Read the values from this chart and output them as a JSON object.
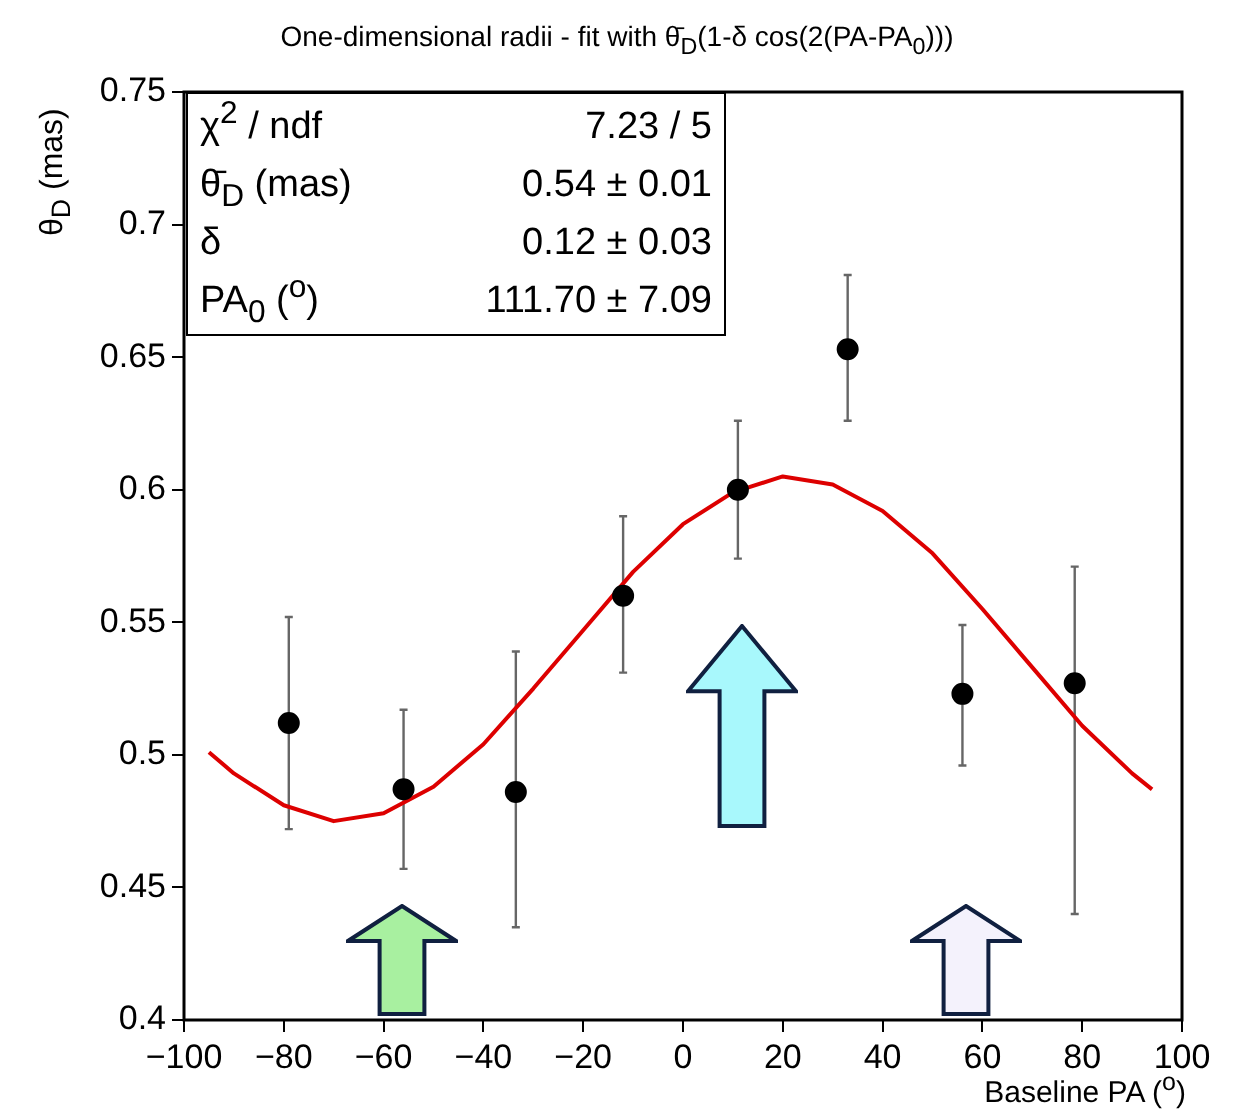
{
  "chart_data": {
    "type": "scatter",
    "title": "One-dimensional radii - fit with θ̄$_{D}$(1-δ cos(2(PA-PA$_{0}$)))",
    "xlabel": "Baseline PA ($^{o}$)",
    "ylabel": "θ$_{D}$ (mas)",
    "xlim": [
      -100,
      100
    ],
    "xticks": [
      {
        "value": -100,
        "label": "−100"
      },
      {
        "value": -80,
        "label": "−80"
      },
      {
        "value": -60,
        "label": "−60"
      },
      {
        "value": -40,
        "label": "−40"
      },
      {
        "value": -20,
        "label": "−20"
      },
      0,
      20,
      40,
      60,
      80,
      100
    ],
    "ylim": [
      0.4,
      0.75
    ],
    "yticks": [
      0.4,
      0.45,
      0.5,
      0.55,
      0.6,
      0.65,
      0.7,
      0.75
    ],
    "annotations": [
      "χ$^{2}$ / ndf",
      "7.23 / 5",
      "θ̄$_{D}$ (mas)",
      "0.54 ± 0.01",
      "δ",
      "0.12 ± 0.03",
      "PA$_{0}$ ($^{o}$)",
      "111.70 ± 7.09"
    ],
    "series": [
      {
        "color": "#000000",
        "marker": "circle",
        "x": [
          -79,
          -56,
          -33.5,
          -12,
          11,
          33,
          56,
          78.5
        ],
        "values": [
          0.512,
          0.487,
          0.486,
          0.56,
          0.6,
          0.653,
          0.523,
          0.527
        ],
        "errors": [
          [
            0.472,
            0.552
          ],
          [
            0.457,
            0.517
          ],
          [
            0.435,
            0.539
          ],
          [
            0.531,
            0.59
          ],
          [
            0.574,
            0.626
          ],
          [
            0.626,
            0.681
          ],
          [
            0.496,
            0.549
          ],
          [
            0.44,
            0.571
          ]
        ]
      },
      {
        "type": "line",
        "color": "#dd0000",
        "marker": "none",
        "line_style": "solid",
        "x": [
          -95,
          -90,
          -80,
          -70,
          -60,
          -50,
          -40,
          -30,
          -20,
          -10,
          0,
          10,
          20,
          30,
          40,
          50,
          60,
          70,
          80,
          90,
          94
        ],
        "values": [
          0.501,
          0.493,
          0.481,
          0.475,
          0.478,
          0.488,
          0.504,
          0.525,
          0.547,
          0.569,
          0.587,
          0.599,
          0.605,
          0.602,
          0.592,
          0.576,
          0.555,
          0.533,
          0.511,
          0.493,
          0.487
        ]
      }
    ]
  }
}
